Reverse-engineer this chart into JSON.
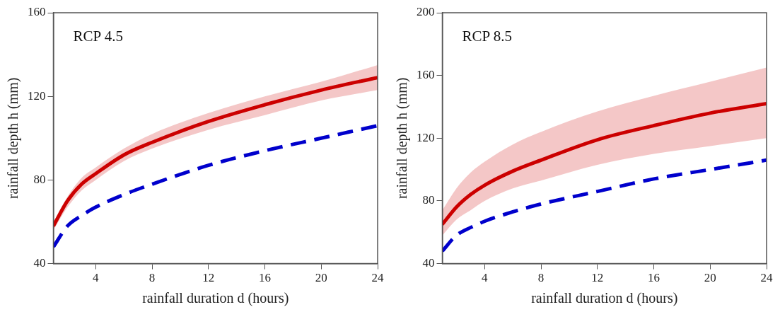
{
  "chart_data": [
    {
      "type": "line",
      "annotations": [
        "RCP 4.5"
      ],
      "xlabel": "rainfall duration d (hours)",
      "ylabel": "rainfall depth h (mm)",
      "xlim": [
        1,
        24
      ],
      "xticks": [
        4,
        8,
        12,
        16,
        20,
        24
      ],
      "ylim": [
        40,
        160
      ],
      "yticks": [
        40,
        80,
        120,
        160
      ],
      "grid": false,
      "legend": false,
      "marker": "none",
      "x": [
        1,
        2,
        3,
        4,
        6,
        8,
        12,
        16,
        20,
        24
      ],
      "series": [
        {
          "color": "#cc0000",
          "line_style": "solid",
          "values": [
            58,
            70,
            78,
            83,
            92,
            98,
            108,
            116,
            123,
            129
          ],
          "lower": [
            56,
            67,
            75,
            80,
            89,
            95,
            104,
            111,
            118,
            123
          ],
          "upper": [
            60,
            72,
            81,
            86,
            95,
            102,
            112,
            120,
            127,
            135
          ]
        },
        {
          "color": "#0000cc",
          "line_style": "dashed",
          "values": [
            48,
            58,
            63,
            67,
            73,
            78,
            87,
            94,
            100,
            106
          ]
        }
      ]
    },
    {
      "type": "line",
      "annotations": [
        "RCP 8.5"
      ],
      "xlabel": "rainfall duration d (hours)",
      "ylabel": "rainfall depth h (mm)",
      "xlim": [
        1,
        24
      ],
      "xticks": [
        4,
        8,
        12,
        16,
        20,
        24
      ],
      "ylim": [
        40,
        200
      ],
      "yticks": [
        40,
        80,
        120,
        160,
        200
      ],
      "grid": false,
      "legend": false,
      "marker": "none",
      "x": [
        1,
        2,
        3,
        4,
        6,
        8,
        12,
        16,
        20,
        24
      ],
      "series": [
        {
          "color": "#cc0000",
          "line_style": "solid",
          "values": [
            65,
            76,
            84,
            90,
            99,
            106,
            119,
            128,
            136,
            142
          ],
          "lower": [
            58,
            68,
            74,
            80,
            88,
            93,
            103,
            110,
            115,
            120
          ],
          "upper": [
            74,
            88,
            98,
            105,
            116,
            124,
            137,
            147,
            156,
            165
          ]
        },
        {
          "color": "#0000cc",
          "line_style": "dashed",
          "values": [
            48,
            58,
            63,
            67,
            73,
            78,
            86,
            94,
            100,
            106
          ]
        }
      ]
    }
  ]
}
